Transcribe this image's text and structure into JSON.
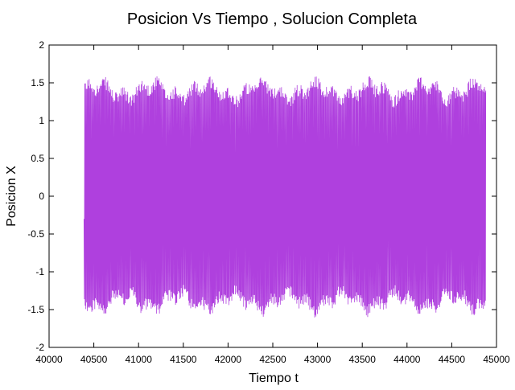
{
  "chart_data": {
    "type": "line",
    "title": "Posicion Vs Tiempo , Solucion Completa",
    "xlabel": "Tiempo t",
    "ylabel": "Posicion X",
    "xlim": [
      40000,
      45000
    ],
    "ylim": [
      -2,
      2
    ],
    "x_ticks": [
      "40000",
      "40500",
      "41000",
      "41500",
      "42000",
      "42500",
      "43000",
      "43500",
      "44000",
      "44500",
      "45000"
    ],
    "y_ticks": [
      "2",
      "1.5",
      "1",
      "0.5",
      "0",
      "-0.5",
      "-1",
      "-1.5",
      "-2"
    ],
    "grid": false,
    "legend": "none",
    "series": [
      {
        "color": "#9400d3",
        "x_start": 40390,
        "x_end": 44880,
        "period": 8,
        "amplitude_min": 1.3,
        "amplitude_max": 1.58,
        "note_values": "dense oscillating signal between about -1.58 and 1.58"
      }
    ]
  }
}
